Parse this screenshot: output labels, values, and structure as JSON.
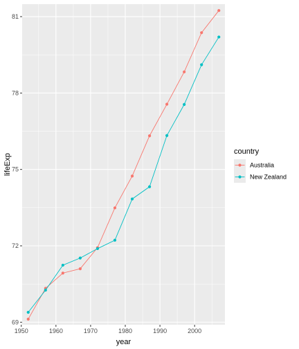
{
  "chart_data": {
    "type": "line",
    "title": "",
    "xlabel": "year",
    "ylabel": "lifeExp",
    "x": [
      1952,
      1957,
      1962,
      1967,
      1972,
      1977,
      1982,
      1987,
      1992,
      1997,
      2002,
      2007
    ],
    "series": [
      {
        "name": "Australia",
        "color": "#F8766D",
        "values": [
          69.12,
          70.33,
          70.93,
          71.1,
          71.93,
          73.49,
          74.74,
          76.32,
          77.56,
          78.83,
          80.37,
          81.24
        ]
      },
      {
        "name": "New Zealand",
        "color": "#00BFC4",
        "values": [
          69.39,
          70.26,
          71.24,
          71.52,
          71.89,
          72.22,
          73.84,
          74.32,
          76.33,
          77.55,
          79.11,
          80.2
        ]
      }
    ],
    "xlim": [
      1950.25,
      2008.75
    ],
    "ylim": [
      68.9,
      81.49
    ],
    "x_ticks": [
      1950,
      1960,
      1970,
      1980,
      1990,
      2000
    ],
    "x_tick_labels": [
      "1950",
      "1960",
      "1970",
      "1980",
      "1990",
      "2000"
    ],
    "y_ticks": [
      69,
      72,
      75,
      78,
      81
    ],
    "y_tick_labels": [
      "69",
      "72",
      "75",
      "78",
      "81"
    ],
    "grid": true,
    "legend": {
      "title": "country",
      "position": "right",
      "entries": [
        "Australia",
        "New Zealand"
      ]
    },
    "colors": {
      "panel_background": "#EBEBEB",
      "grid": "#FFFFFF",
      "tick_label": "#4D4D4D",
      "tick_mark": "#333333"
    }
  }
}
